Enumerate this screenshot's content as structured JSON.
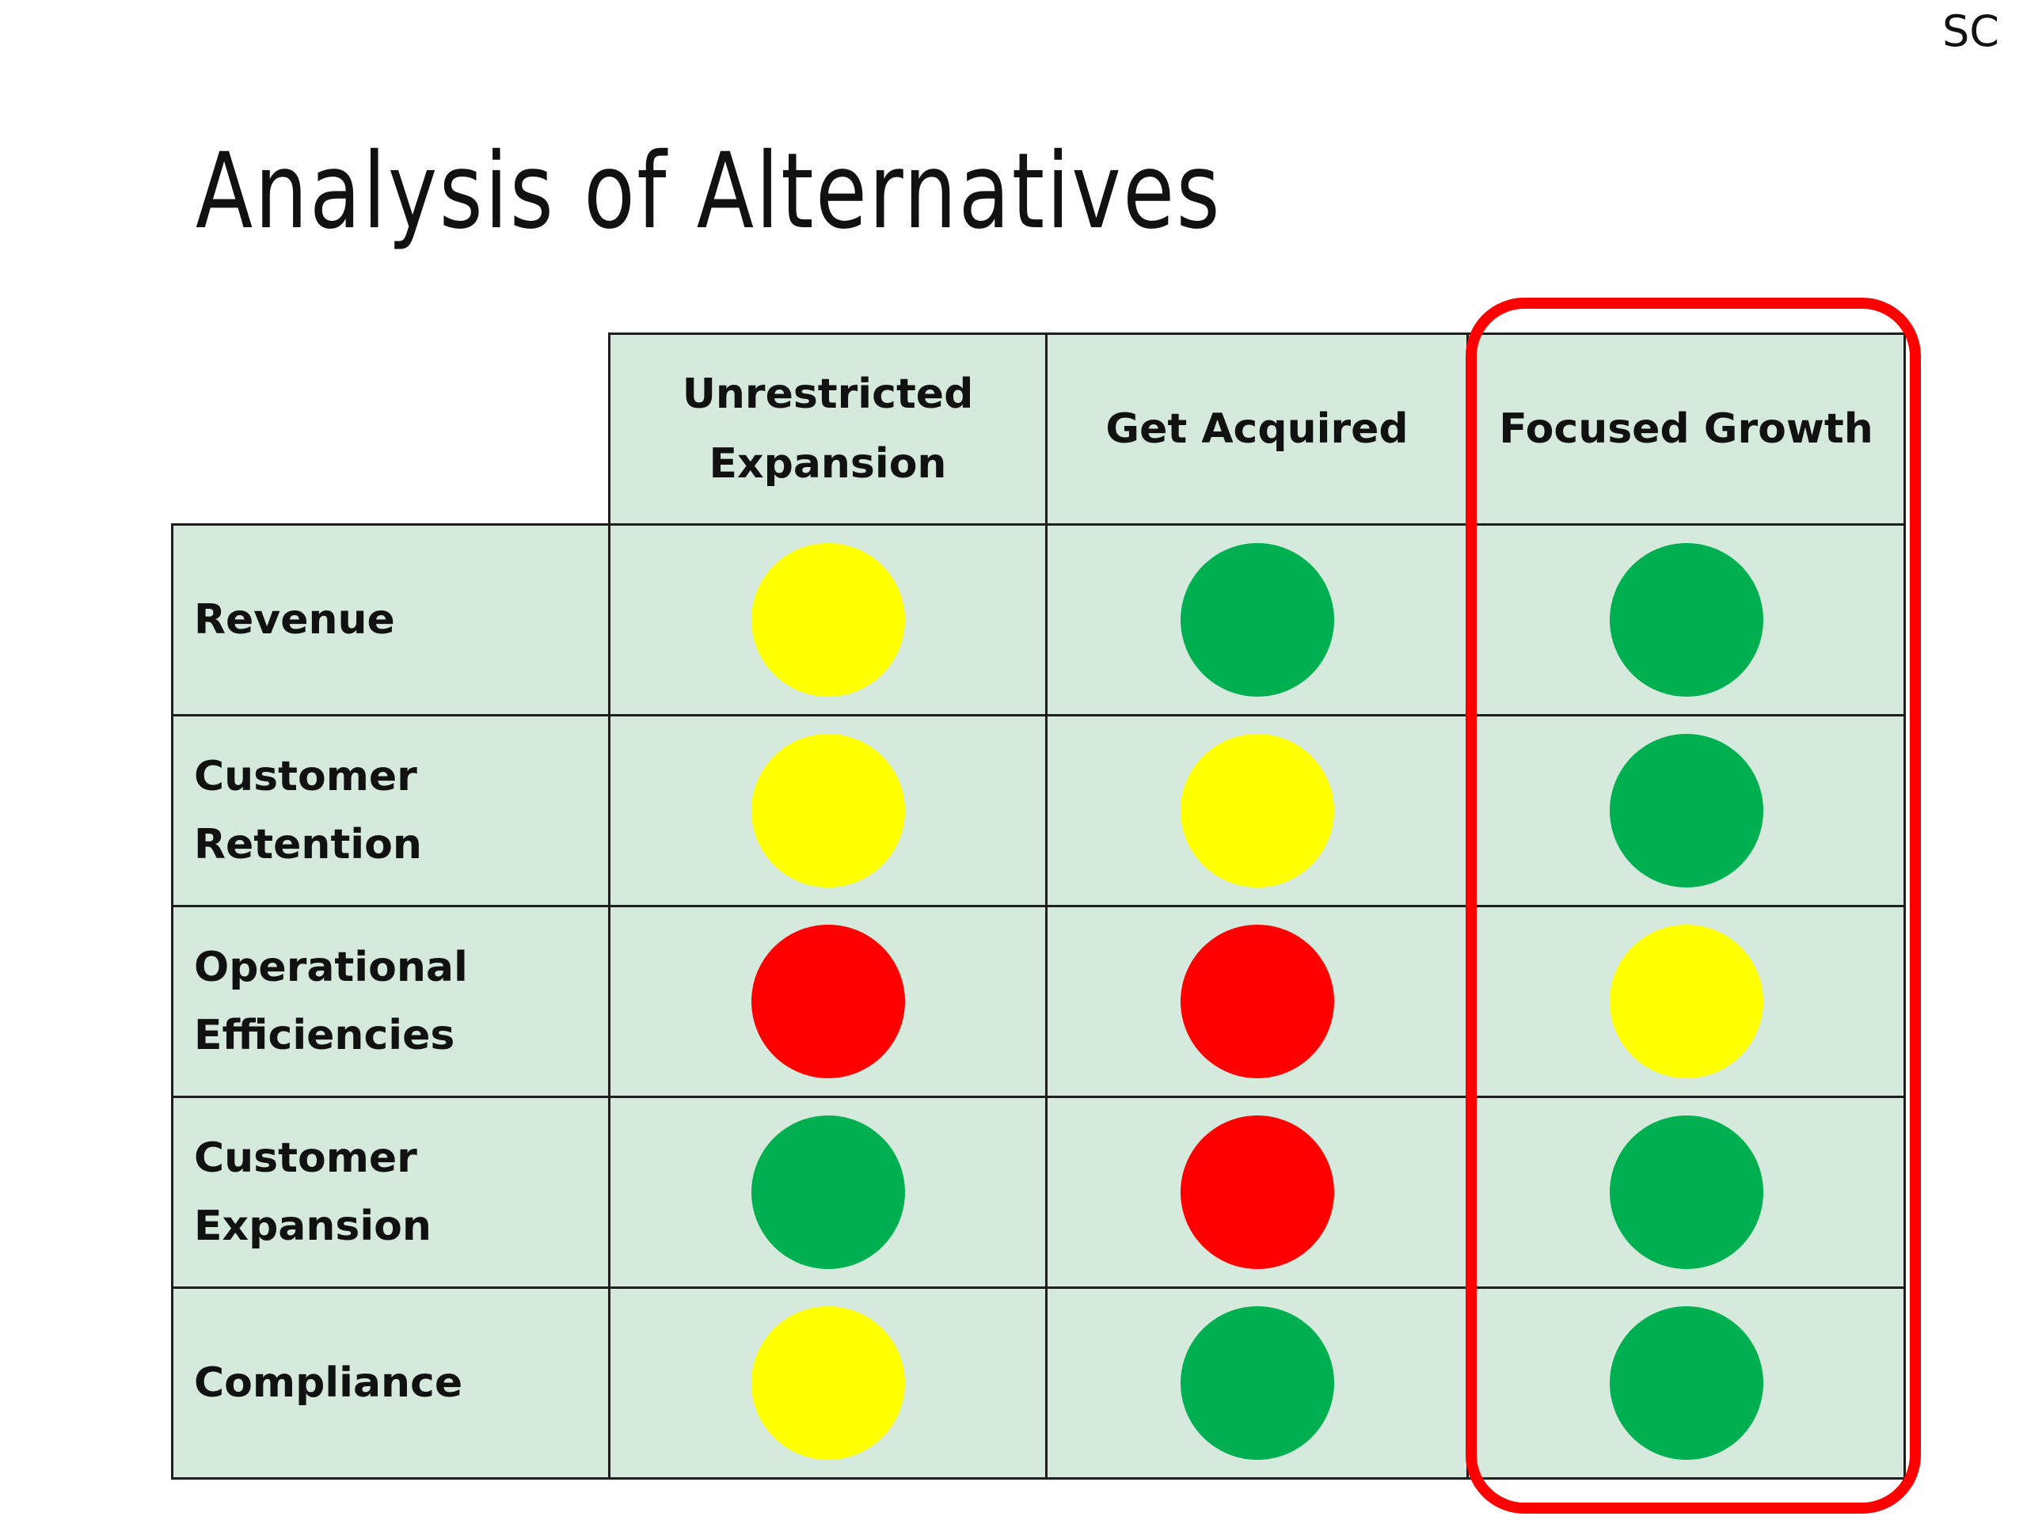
{
  "corner_tag": "SC",
  "title": "Analysis of Alternatives",
  "columns": [
    {
      "line1": "Unrestricted",
      "line2": "Expansion"
    },
    {
      "line1": "Get Acquired",
      "line2": ""
    },
    {
      "line1": "Focused Growth",
      "line2": ""
    }
  ],
  "rows": [
    {
      "line1": "Revenue",
      "line2": "",
      "ratings": [
        "yellow",
        "green",
        "green"
      ]
    },
    {
      "line1": "Customer",
      "line2": "Retention",
      "ratings": [
        "yellow",
        "yellow",
        "green"
      ]
    },
    {
      "line1": "Operational",
      "line2": "Efficiencies",
      "ratings": [
        "red",
        "red",
        "yellow"
      ]
    },
    {
      "line1": "Customer",
      "line2": "Expansion",
      "ratings": [
        "green",
        "red",
        "green"
      ]
    },
    {
      "line1": "Compliance",
      "line2": "",
      "ratings": [
        "yellow",
        "green",
        "green"
      ]
    }
  ],
  "highlighted_column": "Focused Growth",
  "colors": {
    "green": "#00b050",
    "yellow": "#ffff00",
    "red": "#ff0000",
    "cell_background": "#d5eadc",
    "highlight_border": "#ff0000"
  }
}
